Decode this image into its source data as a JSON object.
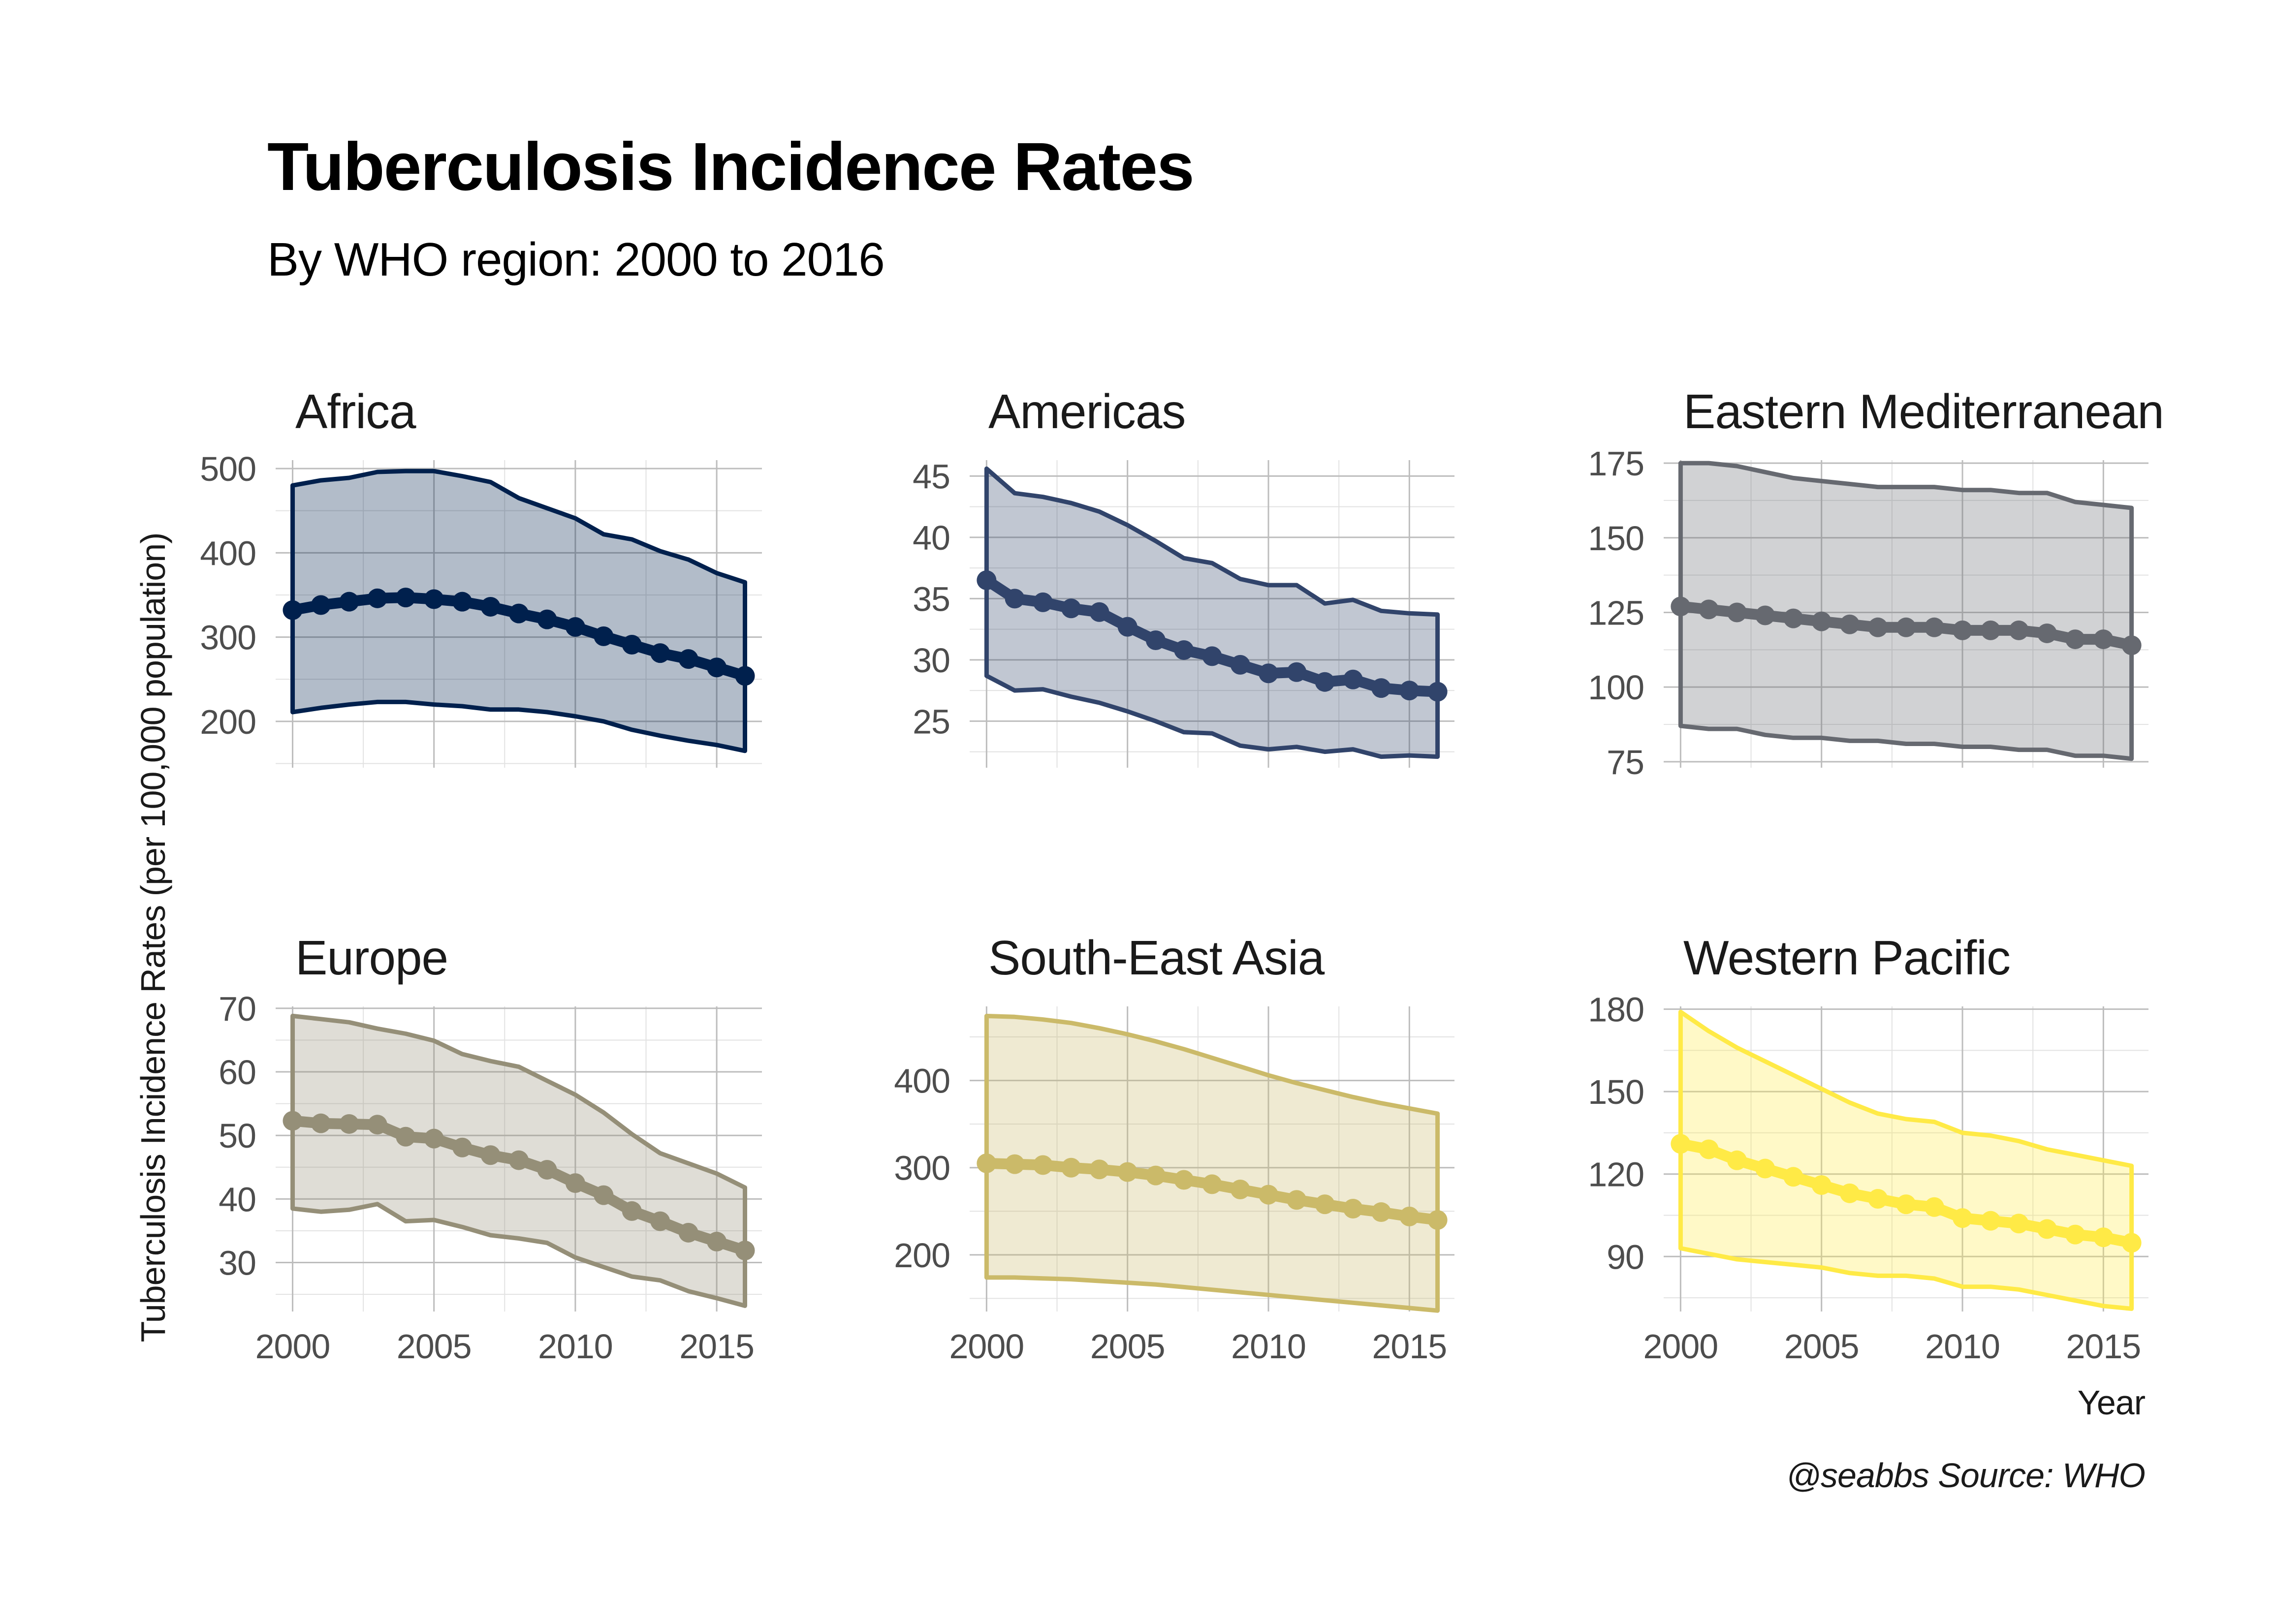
{
  "title": "Tuberculosis Incidence Rates",
  "subtitle": "By WHO region: 2000 to 2016",
  "ylabel": "Tuberculosis Incidence Rates (per 100,000 population)",
  "xlabel": "Year",
  "caption": "@seabbs Source: WHO",
  "chart_data": [
    {
      "type": "line",
      "title": "Africa",
      "color": "#00204D",
      "fill_opacity": 0.3,
      "x": [
        2000,
        2001,
        2002,
        2003,
        2004,
        2005,
        2006,
        2007,
        2008,
        2009,
        2010,
        2011,
        2012,
        2013,
        2014,
        2015,
        2016
      ],
      "y": [
        332,
        338,
        342,
        346,
        347,
        345,
        342,
        336,
        328,
        321,
        312,
        301,
        291,
        281,
        274,
        264,
        254
      ],
      "lower": [
        211,
        216,
        220,
        223,
        223,
        220,
        218,
        214,
        214,
        211,
        206,
        200,
        190,
        183,
        177,
        172,
        165
      ],
      "upper": [
        480,
        486,
        489,
        496,
        497,
        497,
        491,
        484,
        465,
        453,
        441,
        422,
        416,
        402,
        392,
        376,
        365
      ],
      "xlim": [
        1999.4,
        2016.6
      ],
      "ylim": [
        145,
        510
      ],
      "yticks": [
        200,
        300,
        400,
        500
      ],
      "xticks": [
        2000,
        2005,
        2010,
        2015
      ]
    },
    {
      "type": "line",
      "title": "Americas",
      "color": "#31446B",
      "fill_opacity": 0.3,
      "x": [
        2000,
        2001,
        2002,
        2003,
        2004,
        2005,
        2006,
        2007,
        2008,
        2009,
        2010,
        2011,
        2012,
        2013,
        2014,
        2015,
        2016
      ],
      "y": [
        36.5,
        35.0,
        34.7,
        34.2,
        33.9,
        32.7,
        31.6,
        30.8,
        30.3,
        29.6,
        28.9,
        29.0,
        28.2,
        28.4,
        27.7,
        27.5,
        27.4
      ],
      "lower": [
        28.7,
        27.5,
        27.6,
        27.0,
        26.5,
        25.8,
        25.0,
        24.1,
        24.0,
        23.0,
        22.7,
        22.9,
        22.5,
        22.7,
        22.1,
        22.2,
        22.1
      ],
      "upper": [
        45.6,
        43.6,
        43.3,
        42.8,
        42.1,
        41.0,
        39.7,
        38.3,
        37.9,
        36.6,
        36.1,
        36.1,
        34.6,
        34.9,
        34.0,
        33.8,
        33.7
      ],
      "xlim": [
        1999.4,
        2016.6
      ],
      "ylim": [
        21.2,
        46.3
      ],
      "yticks": [
        25,
        30,
        35,
        40,
        45
      ],
      "xticks": [
        2000,
        2005,
        2010,
        2015
      ]
    },
    {
      "type": "line",
      "title": "Eastern Mediterranean",
      "color": "#666970",
      "fill_opacity": 0.3,
      "x": [
        2000,
        2001,
        2002,
        2003,
        2004,
        2005,
        2006,
        2007,
        2008,
        2009,
        2010,
        2011,
        2012,
        2013,
        2014,
        2015,
        2016
      ],
      "y": [
        127,
        126,
        125,
        124,
        123,
        122,
        121,
        120,
        120,
        120,
        119,
        119,
        119,
        118,
        116,
        116,
        114
      ],
      "lower": [
        87,
        86,
        86,
        84,
        83,
        83,
        82,
        82,
        81,
        81,
        80,
        80,
        79,
        79,
        77,
        77,
        76
      ],
      "upper": [
        175,
        175,
        174,
        172,
        170,
        169,
        168,
        167,
        167,
        167,
        166,
        166,
        165,
        165,
        162,
        161,
        160
      ],
      "xlim": [
        1999.4,
        2016.6
      ],
      "ylim": [
        73,
        176
      ],
      "yticks": [
        75,
        100,
        125,
        150,
        175
      ],
      "xticks": [
        2000,
        2005,
        2010,
        2015
      ]
    },
    {
      "type": "line",
      "title": "Europe",
      "color": "#958F78",
      "fill_opacity": 0.3,
      "x": [
        2000,
        2001,
        2002,
        2003,
        2004,
        2005,
        2006,
        2007,
        2008,
        2009,
        2010,
        2011,
        2012,
        2013,
        2014,
        2015,
        2016
      ],
      "y": [
        52.3,
        51.9,
        51.8,
        51.7,
        49.8,
        49.5,
        48.1,
        46.9,
        46.1,
        44.6,
        42.5,
        40.6,
        38.1,
        36.5,
        34.7,
        33.3,
        31.9
      ],
      "lower": [
        38.5,
        38.0,
        38.3,
        39.2,
        36.5,
        36.7,
        35.6,
        34.3,
        33.8,
        33.1,
        30.8,
        29.3,
        27.8,
        27.2,
        25.5,
        24.4,
        23.2
      ],
      "upper": [
        68.8,
        68.3,
        67.8,
        66.8,
        66.0,
        64.9,
        62.8,
        61.7,
        60.8,
        58.6,
        56.4,
        53.6,
        50.2,
        47.2,
        45.6,
        44.0,
        41.8
      ],
      "xlim": [
        1999.4,
        2016.6
      ],
      "ylim": [
        22.3,
        70.3
      ],
      "yticks": [
        30,
        40,
        50,
        60,
        70
      ],
      "xticks": [
        2000,
        2005,
        2010,
        2015
      ]
    },
    {
      "type": "line",
      "title": "South-East Asia",
      "color": "#CBBA69",
      "fill_opacity": 0.3,
      "x": [
        2000,
        2001,
        2002,
        2003,
        2004,
        2005,
        2006,
        2007,
        2008,
        2009,
        2010,
        2011,
        2012,
        2013,
        2014,
        2015,
        2016
      ],
      "y": [
        305,
        304,
        303,
        300,
        298,
        295,
        291,
        286,
        281,
        275,
        269,
        263,
        258,
        253,
        249,
        244,
        240
      ],
      "lower": [
        174,
        174,
        173,
        172,
        170,
        168,
        166,
        163,
        160,
        157,
        154,
        151,
        148,
        145,
        142,
        139,
        136
      ],
      "upper": [
        474,
        473,
        470,
        466,
        460,
        453,
        445,
        436,
        426,
        416,
        406,
        397,
        389,
        381,
        374,
        368,
        362
      ],
      "xlim": [
        1999.4,
        2016.6
      ],
      "ylim": [
        135,
        485
      ],
      "yticks": [
        200,
        300,
        400
      ],
      "xticks": [
        2000,
        2005,
        2010,
        2015
      ]
    },
    {
      "type": "line",
      "title": "Western Pacific",
      "color": "#FFEA46",
      "fill_opacity": 0.3,
      "x": [
        2000,
        2001,
        2002,
        2003,
        2004,
        2005,
        2006,
        2007,
        2008,
        2009,
        2010,
        2011,
        2012,
        2013,
        2014,
        2015,
        2016
      ],
      "y": [
        131,
        129,
        125,
        122,
        119,
        116,
        113,
        111,
        109,
        108,
        104,
        103,
        102,
        100,
        98,
        97,
        95
      ],
      "lower": [
        93,
        91,
        89,
        88,
        87,
        86,
        84,
        83,
        83,
        82,
        79,
        79,
        78,
        76,
        74,
        72,
        71
      ],
      "upper": [
        179,
        172,
        166,
        161,
        156,
        151,
        146,
        142,
        140,
        139,
        135,
        134,
        132,
        129,
        127,
        125,
        123
      ],
      "xlim": [
        1999.4,
        2016.6
      ],
      "ylim": [
        70,
        181
      ],
      "yticks": [
        90,
        120,
        150,
        180
      ],
      "xticks": [
        2000,
        2005,
        2010,
        2015
      ]
    }
  ]
}
